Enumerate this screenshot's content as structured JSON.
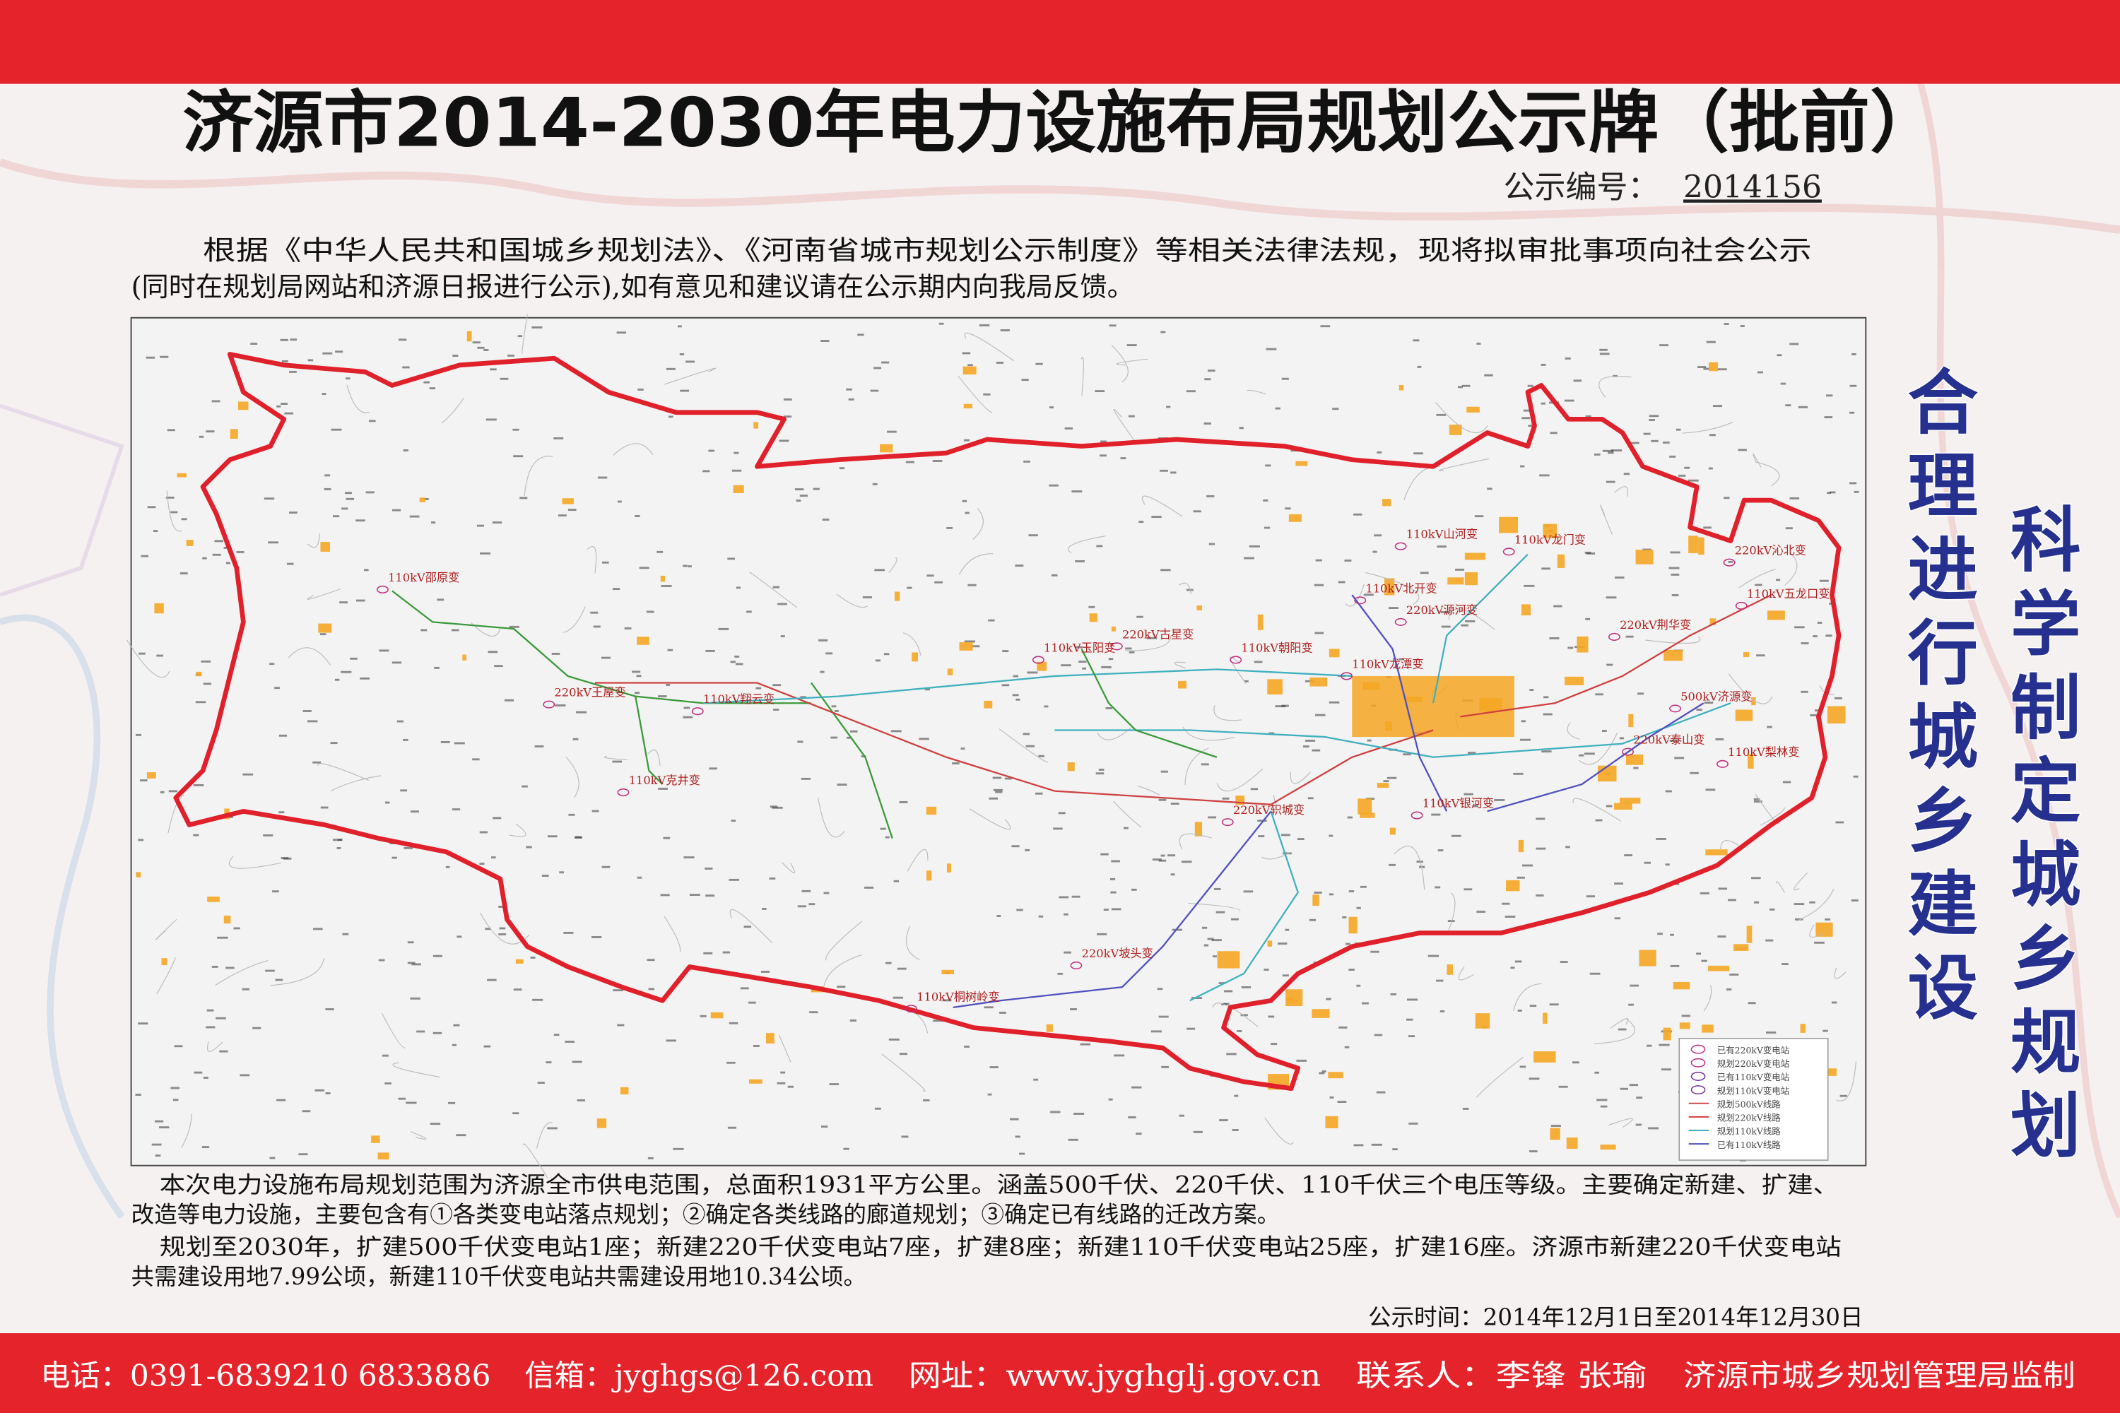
{
  "header": {
    "title": "济源市2014-2030年电力设施布局规划公示牌（批前）",
    "notice_label": "公示编号：",
    "notice_no": "2014156"
  },
  "intro": [
    "根据《中华人民共和国城乡规划法》、《河南省城市规划公示制度》等相关法律法规，现将拟审批事项向社会公示",
    "(同时在规划局网站和济源日报进行公示),如有意见和建议请在公示期内向我局反馈。"
  ],
  "map": {
    "labels": [
      "110kV山河变",
      "110kV龙门变",
      "220kV沁北变",
      "110kV北开变",
      "110kV五龙口变",
      "220kV源河变",
      "220kV荆华变",
      "220kV古星变",
      "110kV玉阳变",
      "110kV朝阳变",
      "110kV龙潭变",
      "110kV邵原变",
      "220kV王屋变",
      "110kV翔云变",
      "500kV济源变",
      "220kV泰山变",
      "110kV克井变",
      "110kV梨林变",
      "220kV轵城变",
      "110kV银河变",
      "220kV坡头变",
      "110kV桐树岭变"
    ],
    "legend": [
      "已有220kV变电站",
      "规划220kV变电站",
      "已有110kV变电站",
      "规划110kV变电站",
      "规划500kV线路",
      "规划220kV线路",
      "规划110kV线路",
      "已有110kV线路"
    ]
  },
  "description": [
    "本次电力设施布局规划范围为济源全市供电范围，总面积1931平方公里。涵盖500千伏、220千伏、110千伏三个电压等级。主要确定新建、扩建、",
    "改造等电力设施，主要包含有①各类变电站落点规划；②确定各类线路的廊道规划；③确定已有线路的迁改方案。",
    "规划至2030年，扩建500千伏变电站1座；新建220千伏变电站7座，扩建8座；新建110千伏变电站25座，扩建16座。济源市新建220千伏变电站",
    "共需建设用地7.99公顷，新建110千伏变电站共需建设用地10.34公顷。"
  ],
  "notice_period": "公示时间：2014年12月1日至2014年12月30日",
  "slogans": [
    "合理进行城乡建设",
    "科学制定城乡规划"
  ],
  "footer": [
    "电话：0391-6839210 6833886",
    "信箱：jyghgs@126.com",
    "网址：www.jyghglj.gov.cn",
    "联系人：李锋 张瑜",
    "济源市城乡规划管理局监制"
  ]
}
